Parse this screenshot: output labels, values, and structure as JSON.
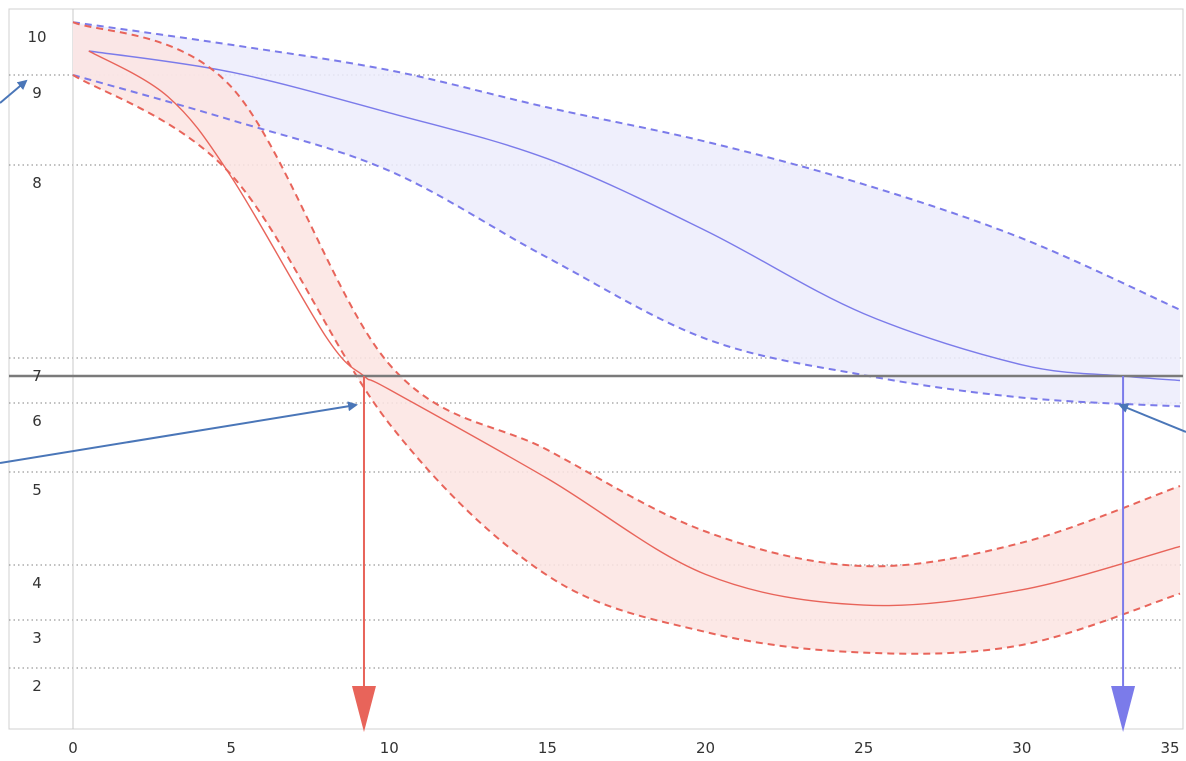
{
  "chart_data": {
    "type": "line",
    "title": "",
    "xlabel": "",
    "ylabel": "",
    "xlim": [
      0,
      35
    ],
    "x_ticks": [
      "0",
      "5",
      "10",
      "15",
      "20",
      "25",
      "30",
      "35"
    ],
    "y_ticks": [
      "10",
      "9",
      "8",
      "7",
      "6",
      "5",
      "4",
      "3",
      "2"
    ],
    "threshold": 6.6,
    "series": [
      {
        "color": "#7b7bea",
        "fill": "#ececfb",
        "central": [
          [
            0.5,
            9.5
          ],
          [
            5,
            9.06
          ],
          [
            10,
            8.58
          ],
          [
            15,
            8.07
          ],
          [
            20,
            7.66
          ],
          [
            25,
            7.23
          ],
          [
            30,
            6.85
          ],
          [
            33.2,
            6.6
          ],
          [
            35,
            6.5
          ]
        ],
        "upper": [
          [
            0,
            10.1
          ],
          [
            5,
            9.63
          ],
          [
            10,
            9.1
          ],
          [
            15,
            8.64
          ],
          [
            20,
            8.26
          ],
          [
            25,
            7.9
          ],
          [
            30,
            7.62
          ],
          [
            35,
            7.25
          ]
        ],
        "lower": [
          [
            0,
            9.0
          ],
          [
            5,
            8.5
          ],
          [
            10,
            7.97
          ],
          [
            15,
            7.52
          ],
          [
            20,
            7.1
          ],
          [
            25,
            6.62
          ],
          [
            30,
            6.12
          ],
          [
            35,
            5.95
          ]
        ],
        "crossing_x": 33.2
      },
      {
        "color": "#e8645a",
        "fill": "#fbe4e2",
        "central": [
          [
            0.5,
            9.5
          ],
          [
            3,
            8.76
          ],
          [
            5,
            7.94
          ],
          [
            8,
            7.11
          ],
          [
            9.2,
            6.6
          ],
          [
            10,
            6.3
          ],
          [
            15,
            4.93
          ],
          [
            20,
            3.83
          ],
          [
            25,
            3.27
          ],
          [
            30,
            3.55
          ],
          [
            35,
            4.2
          ]
        ],
        "upper": [
          [
            0,
            10.1
          ],
          [
            5,
            8.87
          ],
          [
            10,
            6.86
          ],
          [
            15,
            5.32
          ],
          [
            20,
            4.36
          ],
          [
            25,
            3.98
          ],
          [
            30,
            4.24
          ],
          [
            35,
            4.85
          ]
        ],
        "lower": [
          [
            0,
            9.0
          ],
          [
            5,
            7.95
          ],
          [
            10,
            5.7
          ],
          [
            15,
            3.81
          ],
          [
            20,
            2.75
          ],
          [
            25,
            2.32
          ],
          [
            30,
            2.48
          ],
          [
            35,
            3.48
          ]
        ],
        "crossing_x": 9.2
      }
    ]
  }
}
